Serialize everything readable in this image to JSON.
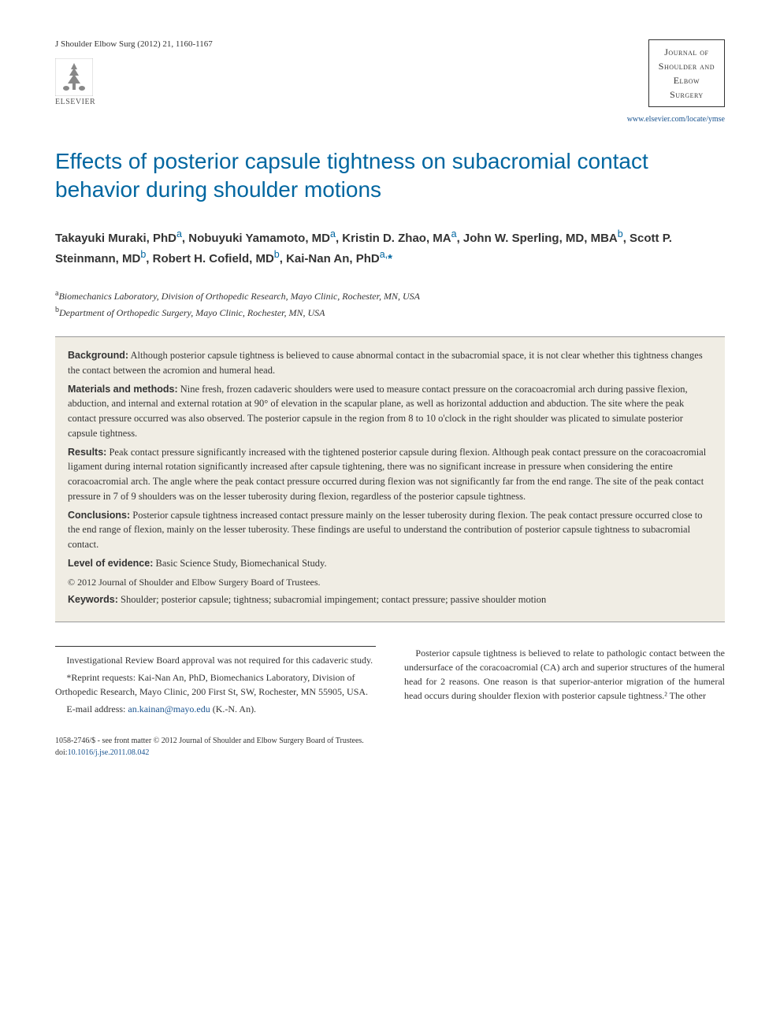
{
  "header": {
    "journal_ref": "J Shoulder Elbow Surg (2012) 21, 1160-1167",
    "publisher_name": "ELSEVIER",
    "journal_box_line1": "Journal of",
    "journal_box_line2": "Shoulder and",
    "journal_box_line3": "Elbow",
    "journal_box_line4": "Surgery",
    "journal_url": "www.elsevier.com/locate/ymse"
  },
  "title": "Effects of posterior capsule tightness on subacromial contact behavior during shoulder motions",
  "authors_html": "Takayuki Muraki, PhD<sup>a</sup>, Nobuyuki Yamamoto, MD<sup>a</sup>, Kristin D. Zhao, MA<sup>a</sup>, John W. Sperling, MD, MBA<sup>b</sup>, Scott P. Steinmann, MD<sup>b</sup>, Robert H. Cofield, MD<sup>b</sup>, Kai-Nan An, PhD<sup>a,</sup><span class=\"asterisk\">*</span>",
  "affiliations": {
    "a": "Biomechanics Laboratory, Division of Orthopedic Research, Mayo Clinic, Rochester, MN, USA",
    "b": "Department of Orthopedic Surgery, Mayo Clinic, Rochester, MN, USA"
  },
  "abstract": {
    "background_label": "Background:",
    "background": "Although posterior capsule tightness is believed to cause abnormal contact in the subacromial space, it is not clear whether this tightness changes the contact between the acromion and humeral head.",
    "methods_label": "Materials and methods:",
    "methods": "Nine fresh, frozen cadaveric shoulders were used to measure contact pressure on the coracoacromial arch during passive flexion, abduction, and internal and external rotation at 90° of elevation in the scapular plane, as well as horizontal adduction and abduction. The site where the peak contact pressure occurred was also observed. The posterior capsule in the region from 8 to 10 o'clock in the right shoulder was plicated to simulate posterior capsule tightness.",
    "results_label": "Results:",
    "results": "Peak contact pressure significantly increased with the tightened posterior capsule during flexion. Although peak contact pressure on the coracoacromial ligament during internal rotation significantly increased after capsule tightening, there was no significant increase in pressure when considering the entire coracoacromial arch. The angle where the peak contact pressure occurred during flexion was not significantly far from the end range. The site of the peak contact pressure in 7 of 9 shoulders was on the lesser tuberosity during flexion, regardless of the posterior capsule tightness.",
    "conclusions_label": "Conclusions:",
    "conclusions": "Posterior capsule tightness increased contact pressure mainly on the lesser tuberosity during flexion. The peak contact pressure occurred close to the end range of flexion, mainly on the lesser tuberosity. These findings are useful to understand the contribution of posterior capsule tightness to subacromial contact.",
    "level_label": "Level of evidence:",
    "level": "Basic Science Study, Biomechanical Study.",
    "copyright": "© 2012 Journal of Shoulder and Elbow Surgery Board of Trustees.",
    "keywords_label": "Keywords:",
    "keywords": "Shoulder; posterior capsule; tightness; subacromial impingement; contact pressure; passive shoulder motion"
  },
  "footnotes": {
    "irb": "Investigational Review Board approval was not required for this cadaveric study.",
    "reprint_label": "*Reprint requests:",
    "reprint": "Kai-Nan An, PhD, Biomechanics Laboratory, Division of Orthopedic Research, Mayo Clinic, 200 First St, SW, Rochester, MN 55905, USA.",
    "email_label": "E-mail address:",
    "email": "an.kainan@mayo.edu",
    "email_suffix": "(K.-N. An)."
  },
  "body_text": "Posterior capsule tightness is believed to relate to pathologic contact between the undersurface of the coracoacromial (CA) arch and superior structures of the humeral head for 2 reasons. One reason is that superior-anterior migration of the humeral head occurs during shoulder flexion with posterior capsule tightness.² The other",
  "footer": {
    "front_matter": "1058-2746/$ - see front matter © 2012 Journal of Shoulder and Elbow Surgery Board of Trustees.",
    "doi_label": "doi:",
    "doi": "10.1016/j.jse.2011.08.042"
  },
  "colors": {
    "title_color": "#0066a0",
    "link_color": "#1a5490",
    "abstract_bg": "#f0ede4",
    "text_color": "#333333"
  }
}
